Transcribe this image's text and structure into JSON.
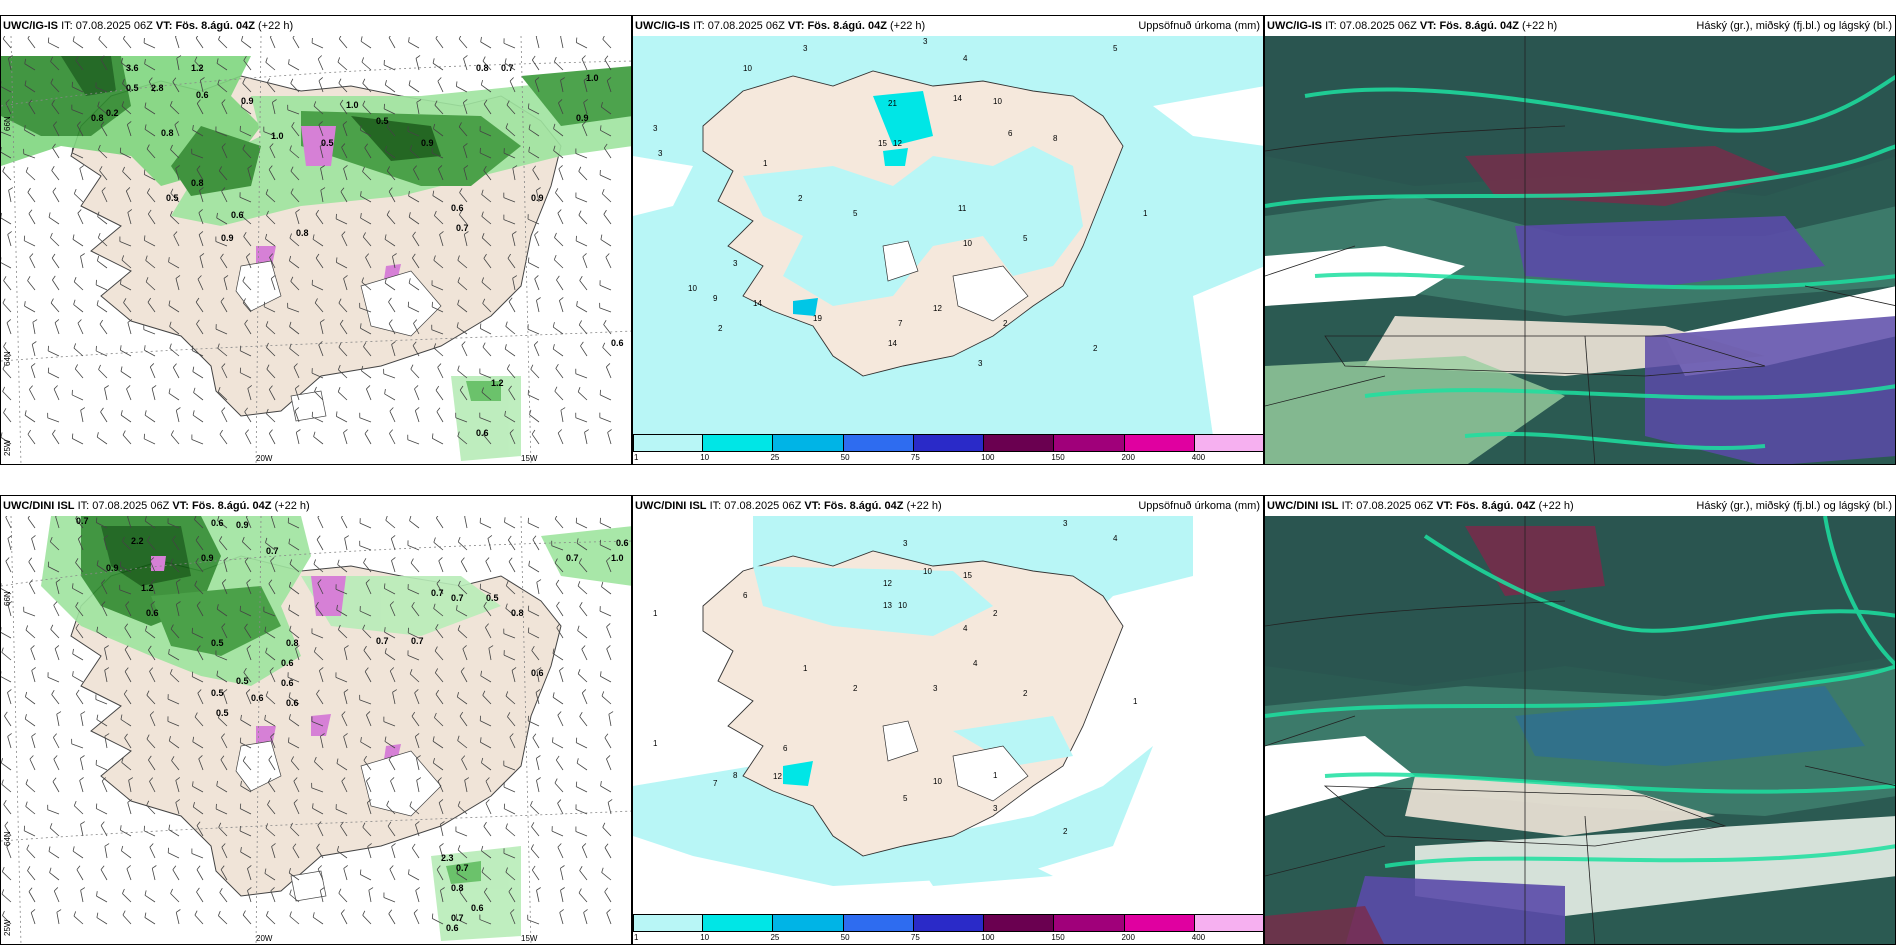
{
  "panels": [
    {
      "model": "UWC/IG-IS",
      "it_label": "IT:",
      "it": "07.08.2025 06Z",
      "vt_label": "VT:",
      "vt": "Fös. 8.ágú. 04Z",
      "lead": "(+22 h)",
      "right_title": ""
    },
    {
      "model": "UWC/IG-IS",
      "it_label": "IT:",
      "it": "07.08.2025 06Z",
      "vt_label": "VT:",
      "vt": "Fös. 8.ágú. 04Z",
      "lead": "(+22 h)",
      "right_title": "Uppsöfnuð úrkoma (mm)"
    },
    {
      "model": "UWC/IG-IS",
      "it_label": "IT:",
      "it": "07.08.2025 06Z",
      "vt_label": "VT:",
      "vt": "Fös. 8.ágú. 04Z",
      "lead": "(+22 h)",
      "right_title": "Háský (gr.), miðský (fj.bl.) og lágský (bl.)"
    },
    {
      "model": "UWC/DINI ISL",
      "it_label": "IT:",
      "it": "07.08.2025 06Z",
      "vt_label": "VT:",
      "vt": "Fös. 8.ágú. 04Z",
      "lead": "(+22 h)",
      "right_title": ""
    },
    {
      "model": "UWC/DINI ISL",
      "it_label": "IT:",
      "it": "07.08.2025 06Z",
      "vt_label": "VT:",
      "vt": "Fös. 8.ágú. 04Z",
      "lead": "(+22 h)",
      "right_title": "Uppsöfnuð úrkoma (mm)"
    },
    {
      "model": "UWC/DINI ISL",
      "it_label": "IT:",
      "it": "07.08.2025 06Z",
      "vt_label": "VT:",
      "vt": "Fös. 8.ágú. 04Z",
      "lead": "(+22 h)",
      "right_title": "Háský (gr.), miðský (fj.bl.) og lágský (bl.)"
    }
  ],
  "axis_labels": {
    "lat66": "66N",
    "lat64": "64N",
    "lon25": "25W",
    "lon20": "20W",
    "lon15": "15W"
  },
  "colorbar": {
    "ticks": [
      "1",
      "10",
      "25",
      "50",
      "75",
      "100",
      "150",
      "200",
      "400"
    ],
    "colors": [
      "#b8f6f6",
      "#00e6e6",
      "#00b4e6",
      "#2e6cf0",
      "#2a2ac8",
      "#6a0050",
      "#a0007a",
      "#e000a0",
      "#f6b0f0"
    ]
  },
  "precip_labels_top": [
    {
      "t": "3",
      "x": 170,
      "y": 15
    },
    {
      "t": "3",
      "x": 290,
      "y": 8
    },
    {
      "t": "5",
      "x": 480,
      "y": 15
    },
    {
      "t": "4",
      "x": 330,
      "y": 25
    },
    {
      "t": "10",
      "x": 110,
      "y": 35
    },
    {
      "t": "14",
      "x": 320,
      "y": 65
    },
    {
      "t": "21",
      "x": 255,
      "y": 70
    },
    {
      "t": "10",
      "x": 360,
      "y": 68
    },
    {
      "t": "15",
      "x": 245,
      "y": 110
    },
    {
      "t": "12",
      "x": 260,
      "y": 110
    },
    {
      "t": "6",
      "x": 375,
      "y": 100
    },
    {
      "t": "8",
      "x": 420,
      "y": 105
    },
    {
      "t": "3",
      "x": 20,
      "y": 95
    },
    {
      "t": "3",
      "x": 25,
      "y": 120
    },
    {
      "t": "1",
      "x": 130,
      "y": 130
    },
    {
      "t": "2",
      "x": 165,
      "y": 165
    },
    {
      "t": "5",
      "x": 220,
      "y": 180
    },
    {
      "t": "11",
      "x": 325,
      "y": 175
    },
    {
      "t": "10",
      "x": 330,
      "y": 210
    },
    {
      "t": "5",
      "x": 390,
      "y": 205
    },
    {
      "t": "3",
      "x": 100,
      "y": 230
    },
    {
      "t": "10",
      "x": 55,
      "y": 255
    },
    {
      "t": "9",
      "x": 80,
      "y": 265
    },
    {
      "t": "14",
      "x": 120,
      "y": 270
    },
    {
      "t": "19",
      "x": 180,
      "y": 285
    },
    {
      "t": "12",
      "x": 300,
      "y": 275
    },
    {
      "t": "7",
      "x": 265,
      "y": 290
    },
    {
      "t": "14",
      "x": 255,
      "y": 310
    },
    {
      "t": "2",
      "x": 85,
      "y": 295
    },
    {
      "t": "2",
      "x": 370,
      "y": 290
    },
    {
      "t": "3",
      "x": 345,
      "y": 330
    },
    {
      "t": "2",
      "x": 460,
      "y": 315
    },
    {
      "t": "1",
      "x": 510,
      "y": 180
    }
  ],
  "precip_labels_bottom": [
    {
      "t": "3",
      "x": 270,
      "y": 30
    },
    {
      "t": "4",
      "x": 480,
      "y": 25
    },
    {
      "t": "3",
      "x": 430,
      "y": 10
    },
    {
      "t": "15",
      "x": 330,
      "y": 62
    },
    {
      "t": "10",
      "x": 290,
      "y": 58
    },
    {
      "t": "12",
      "x": 250,
      "y": 70
    },
    {
      "t": "6",
      "x": 110,
      "y": 82
    },
    {
      "t": "1",
      "x": 20,
      "y": 100
    },
    {
      "t": "13",
      "x": 250,
      "y": 92
    },
    {
      "t": "10",
      "x": 265,
      "y": 92
    },
    {
      "t": "4",
      "x": 330,
      "y": 115
    },
    {
      "t": "2",
      "x": 360,
      "y": 100
    },
    {
      "t": "1",
      "x": 170,
      "y": 155
    },
    {
      "t": "2",
      "x": 220,
      "y": 175
    },
    {
      "t": "4",
      "x": 340,
      "y": 150
    },
    {
      "t": "3",
      "x": 300,
      "y": 175
    },
    {
      "t": "2",
      "x": 390,
      "y": 180
    },
    {
      "t": "1",
      "x": 20,
      "y": 230
    },
    {
      "t": "6",
      "x": 150,
      "y": 235
    },
    {
      "t": "12",
      "x": 140,
      "y": 263
    },
    {
      "t": "8",
      "x": 100,
      "y": 262
    },
    {
      "t": "7",
      "x": 80,
      "y": 270
    },
    {
      "t": "10",
      "x": 300,
      "y": 268
    },
    {
      "t": "5",
      "x": 270,
      "y": 285
    },
    {
      "t": "1",
      "x": 360,
      "y": 262
    },
    {
      "t": "3",
      "x": 360,
      "y": 295
    },
    {
      "t": "2",
      "x": 430,
      "y": 318
    },
    {
      "t": "1",
      "x": 500,
      "y": 188
    }
  ],
  "rain_labels_top": [
    {
      "t": "3.6",
      "x": 125,
      "y": 35
    },
    {
      "t": "1.2",
      "x": 190,
      "y": 35
    },
    {
      "t": "0.5",
      "x": 125,
      "y": 55
    },
    {
      "t": "2.8",
      "x": 150,
      "y": 55
    },
    {
      "t": "0.6",
      "x": 195,
      "y": 62
    },
    {
      "t": "0.9",
      "x": 240,
      "y": 68
    },
    {
      "t": "1.0",
      "x": 345,
      "y": 72
    },
    {
      "t": "0.5",
      "x": 375,
      "y": 88
    },
    {
      "t": "0.8",
      "x": 90,
      "y": 85
    },
    {
      "t": "0.2",
      "x": 105,
      "y": 80
    },
    {
      "t": "0.8",
      "x": 160,
      "y": 100
    },
    {
      "t": "1.0",
      "x": 270,
      "y": 103
    },
    {
      "t": "0.5",
      "x": 320,
      "y": 110
    },
    {
      "t": "0.9",
      "x": 420,
      "y": 110
    },
    {
      "t": "0.8",
      "x": 475,
      "y": 35
    },
    {
      "t": "0.7",
      "x": 500,
      "y": 35
    },
    {
      "t": "1.0",
      "x": 585,
      "y": 45
    },
    {
      "t": "0.9",
      "x": 575,
      "y": 85
    },
    {
      "t": "0.8",
      "x": 190,
      "y": 150
    },
    {
      "t": "0.5",
      "x": 165,
      "y": 165
    },
    {
      "t": "0.6",
      "x": 230,
      "y": 182
    },
    {
      "t": "0.6",
      "x": 450,
      "y": 175
    },
    {
      "t": "0.7",
      "x": 455,
      "y": 195
    },
    {
      "t": "0.9",
      "x": 220,
      "y": 205
    },
    {
      "t": "0.8",
      "x": 295,
      "y": 200
    },
    {
      "t": "0.9",
      "x": 530,
      "y": 165
    },
    {
      "t": "0.6",
      "x": 610,
      "y": 310
    },
    {
      "t": "1.2",
      "x": 490,
      "y": 350
    },
    {
      "t": "0.6",
      "x": 475,
      "y": 400
    }
  ],
  "rain_labels_bottom": [
    {
      "t": "0.7",
      "x": 75,
      "y": 8
    },
    {
      "t": "0.6",
      "x": 210,
      "y": 10
    },
    {
      "t": "0.9",
      "x": 235,
      "y": 12
    },
    {
      "t": "0.7",
      "x": 265,
      "y": 38
    },
    {
      "t": "2.2",
      "x": 130,
      "y": 28
    },
    {
      "t": "0.9",
      "x": 200,
      "y": 45
    },
    {
      "t": "0.9",
      "x": 105,
      "y": 55
    },
    {
      "t": "1.2",
      "x": 140,
      "y": 75
    },
    {
      "t": "0.7",
      "x": 430,
      "y": 80
    },
    {
      "t": "0.7",
      "x": 450,
      "y": 85
    },
    {
      "t": "0.5",
      "x": 485,
      "y": 85
    },
    {
      "t": "0.8",
      "x": 510,
      "y": 100
    },
    {
      "t": "0.7",
      "x": 565,
      "y": 45
    },
    {
      "t": "1.0",
      "x": 610,
      "y": 45
    },
    {
      "t": "0.6",
      "x": 615,
      "y": 30
    },
    {
      "t": "0.6",
      "x": 145,
      "y": 100
    },
    {
      "t": "0.7",
      "x": 375,
      "y": 128
    },
    {
      "t": "0.7",
      "x": 410,
      "y": 128
    },
    {
      "t": "0.5",
      "x": 210,
      "y": 130
    },
    {
      "t": "0.8",
      "x": 285,
      "y": 130
    },
    {
      "t": "0.6",
      "x": 280,
      "y": 150
    },
    {
      "t": "0.5",
      "x": 235,
      "y": 168
    },
    {
      "t": "0.6",
      "x": 280,
      "y": 170
    },
    {
      "t": "0.5",
      "x": 210,
      "y": 180
    },
    {
      "t": "0.6",
      "x": 250,
      "y": 185
    },
    {
      "t": "0.5",
      "x": 215,
      "y": 200
    },
    {
      "t": "0.6",
      "x": 285,
      "y": 190
    },
    {
      "t": "0.6",
      "x": 530,
      "y": 160
    },
    {
      "t": "2.3",
      "x": 440,
      "y": 345
    },
    {
      "t": "0.7",
      "x": 455,
      "y": 355
    },
    {
      "t": "0.8",
      "x": 450,
      "y": 375
    },
    {
      "t": "0.6",
      "x": 470,
      "y": 395
    },
    {
      "t": "0.7",
      "x": 450,
      "y": 405
    },
    {
      "t": "0.6",
      "x": 445,
      "y": 415
    }
  ]
}
